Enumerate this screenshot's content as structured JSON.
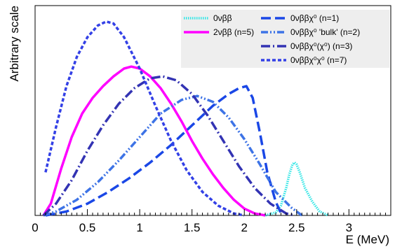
{
  "chart_data": {
    "type": "line",
    "xlabel": "E (MeV)",
    "ylabel": "Arbitrary scale",
    "xlim": [
      0,
      3.4
    ],
    "ylim": [
      0,
      1.0
    ],
    "x_ticks": [
      "0",
      "0.5",
      "1",
      "1.5",
      "2",
      "2.5",
      "3"
    ],
    "grid": false,
    "legend_placement": "top-right",
    "legend_background": "#eeeeee",
    "series": [
      {
        "name": "0νββ",
        "color": "#33e6e6",
        "dash": "dotted",
        "points": [
          [
            2.2,
            0.0
          ],
          [
            2.3,
            0.015
          ],
          [
            2.35,
            0.05
          ],
          [
            2.4,
            0.14
          ],
          [
            2.43,
            0.21
          ],
          [
            2.46,
            0.26
          ],
          [
            2.48,
            0.27
          ],
          [
            2.5,
            0.26
          ],
          [
            2.53,
            0.22
          ],
          [
            2.58,
            0.14
          ],
          [
            2.65,
            0.07
          ],
          [
            2.72,
            0.02
          ],
          [
            2.8,
            0.0
          ]
        ]
      },
      {
        "name": "2νββ (n=5)",
        "color": "#ff00ff",
        "dash": "solid",
        "points": [
          [
            0.08,
            0.0
          ],
          [
            0.15,
            0.06
          ],
          [
            0.25,
            0.24
          ],
          [
            0.35,
            0.4
          ],
          [
            0.45,
            0.52
          ],
          [
            0.55,
            0.6
          ],
          [
            0.65,
            0.66
          ],
          [
            0.75,
            0.71
          ],
          [
            0.85,
            0.75
          ],
          [
            0.92,
            0.76
          ],
          [
            1.0,
            0.75
          ],
          [
            1.1,
            0.71
          ],
          [
            1.2,
            0.65
          ],
          [
            1.3,
            0.57
          ],
          [
            1.4,
            0.48
          ],
          [
            1.5,
            0.38
          ],
          [
            1.6,
            0.29
          ],
          [
            1.7,
            0.21
          ],
          [
            1.8,
            0.14
          ],
          [
            1.9,
            0.08
          ],
          [
            2.0,
            0.035
          ],
          [
            2.1,
            0.01
          ],
          [
            2.2,
            0.0
          ]
        ]
      },
      {
        "name": "0νββχ⁰ (n=1)",
        "color": "#1a47e6",
        "dash": "longdash",
        "points": [
          [
            0.1,
            0.0
          ],
          [
            0.3,
            0.02
          ],
          [
            0.5,
            0.06
          ],
          [
            0.7,
            0.12
          ],
          [
            0.9,
            0.19
          ],
          [
            1.1,
            0.27
          ],
          [
            1.3,
            0.36
          ],
          [
            1.5,
            0.46
          ],
          [
            1.7,
            0.56
          ],
          [
            1.85,
            0.62
          ],
          [
            1.95,
            0.65
          ],
          [
            2.02,
            0.66
          ],
          [
            2.08,
            0.6
          ],
          [
            2.15,
            0.42
          ],
          [
            2.22,
            0.22
          ],
          [
            2.3,
            0.07
          ],
          [
            2.36,
            0.0
          ]
        ]
      },
      {
        "name": "0νββχ⁰ 'bulk' (n=2)",
        "color": "#3d73e6",
        "dash": "dashdotdot",
        "points": [
          [
            0.08,
            0.0
          ],
          [
            0.2,
            0.02
          ],
          [
            0.4,
            0.08
          ],
          [
            0.6,
            0.17
          ],
          [
            0.8,
            0.28
          ],
          [
            1.0,
            0.4
          ],
          [
            1.2,
            0.52
          ],
          [
            1.4,
            0.59
          ],
          [
            1.55,
            0.61
          ],
          [
            1.7,
            0.58
          ],
          [
            1.85,
            0.5
          ],
          [
            2.0,
            0.39
          ],
          [
            2.15,
            0.26
          ],
          [
            2.3,
            0.12
          ],
          [
            2.45,
            0.04
          ],
          [
            2.55,
            0.0
          ]
        ]
      },
      {
        "name": "0νββχ⁰(χ⁰) (n=3)",
        "color": "#3333b3",
        "dash": "dashdot",
        "points": [
          [
            0.08,
            0.0
          ],
          [
            0.2,
            0.06
          ],
          [
            0.35,
            0.18
          ],
          [
            0.5,
            0.33
          ],
          [
            0.65,
            0.46
          ],
          [
            0.8,
            0.57
          ],
          [
            0.95,
            0.65
          ],
          [
            1.1,
            0.7
          ],
          [
            1.22,
            0.71
          ],
          [
            1.35,
            0.69
          ],
          [
            1.5,
            0.62
          ],
          [
            1.65,
            0.51
          ],
          [
            1.8,
            0.38
          ],
          [
            1.95,
            0.25
          ],
          [
            2.1,
            0.14
          ],
          [
            2.25,
            0.06
          ],
          [
            2.4,
            0.01
          ],
          [
            2.48,
            0.0
          ]
        ]
      },
      {
        "name": "0νββχ⁰χ⁰ (n=7)",
        "color": "#3340e6",
        "dash": "dashed",
        "points": [
          [
            0.1,
            0.22
          ],
          [
            0.2,
            0.45
          ],
          [
            0.3,
            0.66
          ],
          [
            0.4,
            0.81
          ],
          [
            0.5,
            0.91
          ],
          [
            0.6,
            0.97
          ],
          [
            0.68,
            0.99
          ],
          [
            0.75,
            0.98
          ],
          [
            0.85,
            0.91
          ],
          [
            1.0,
            0.75
          ],
          [
            1.15,
            0.56
          ],
          [
            1.3,
            0.38
          ],
          [
            1.45,
            0.23
          ],
          [
            1.6,
            0.12
          ],
          [
            1.75,
            0.05
          ],
          [
            1.9,
            0.01
          ],
          [
            2.0,
            0.0
          ]
        ]
      }
    ]
  }
}
